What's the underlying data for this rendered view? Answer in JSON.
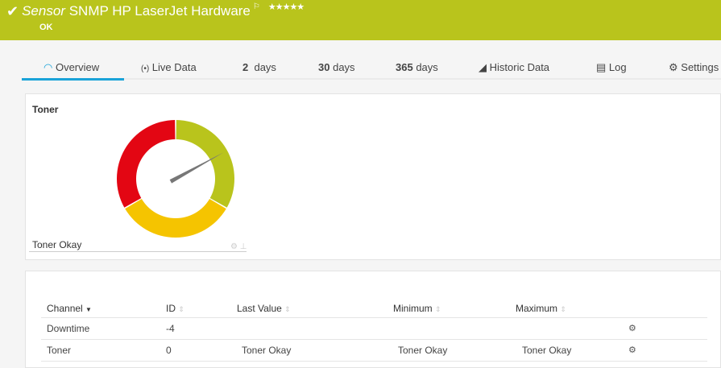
{
  "header": {
    "sensor_word": "Sensor",
    "title": "SNMP HP LaserJet Hardware",
    "status": "OK",
    "stars": "★★★★★",
    "priority": 5,
    "color": "#b9c41c"
  },
  "tabs": [
    {
      "icon": "gauge-icon",
      "label": "Overview",
      "active": true
    },
    {
      "icon": "live-data-icon",
      "label": "Live Data"
    },
    {
      "num": "2",
      "label": "days"
    },
    {
      "num": "30",
      "label": "days"
    },
    {
      "num": "365",
      "label": "days"
    },
    {
      "icon": "chart-icon",
      "label": "Historic Data"
    },
    {
      "icon": "log-icon",
      "label": "Log"
    },
    {
      "icon": "gear-icon",
      "label": "Settings"
    }
  ],
  "gauge": {
    "title": "Toner",
    "value_label": "Toner Okay",
    "segments": [
      {
        "color": "#b9c41c"
      },
      {
        "color": "#f5c400"
      },
      {
        "color": "#e30613"
      }
    ],
    "needle_fraction": 0.17
  },
  "table": {
    "headers": [
      "Channel",
      "ID",
      "Last Value",
      "Minimum",
      "Maximum"
    ],
    "rows": [
      {
        "channel": "Downtime",
        "id": "-4",
        "last": "",
        "min": "",
        "max": ""
      },
      {
        "channel": "Toner",
        "id": "0",
        "last": "Toner Okay",
        "min": "Toner Okay",
        "max": "Toner Okay"
      }
    ]
  }
}
